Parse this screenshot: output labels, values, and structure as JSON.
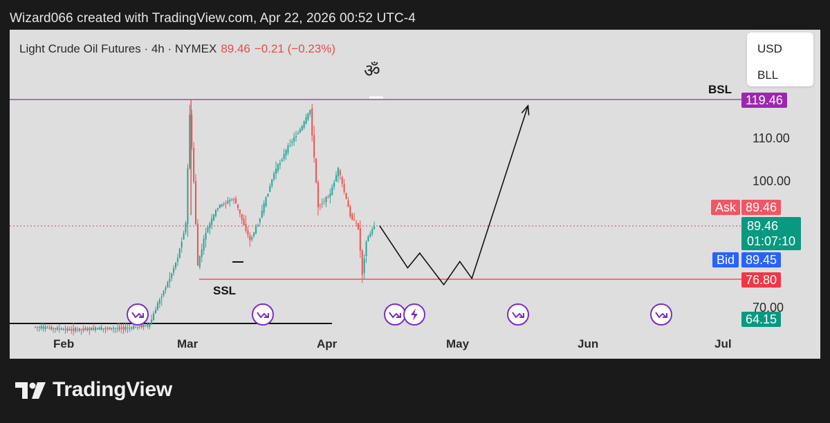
{
  "header": {
    "text": "Wizard066 created with TradingView.com, Apr 22, 2026 00:52 UTC-4"
  },
  "symbol": {
    "name": "Light Crude Oil Futures · 4h · NYMEX",
    "price": "89.46",
    "change": "−0.21 (−0.23%)",
    "glyph": "ॐ"
  },
  "currency_menu": {
    "options": [
      "USD",
      "BLL"
    ]
  },
  "price_axis": {
    "ticks": [
      "110.00",
      "100.00",
      "70.00"
    ]
  },
  "time_axis": {
    "ticks": [
      "Feb",
      "Mar",
      "Apr",
      "May",
      "Jun",
      "Jul"
    ]
  },
  "tags": {
    "bsl": {
      "label": "BSL",
      "value": "119.46",
      "color": "#9c27b0"
    },
    "ask": {
      "label": "Ask",
      "value": "89.46",
      "color": "#f25563"
    },
    "last": {
      "value": "89.46",
      "countdown": "01:07:10",
      "color": "#089981"
    },
    "bid": {
      "label": "Bid",
      "value": "89.45",
      "color": "#2962ff"
    },
    "ssl": {
      "label": "SSL",
      "value": "76.80",
      "color": "#f23645"
    },
    "low": {
      "value": "64.15",
      "color": "#089981"
    }
  },
  "colors": {
    "up": "#26a69a",
    "down": "#ef5350",
    "event_icon": "#7b2cbf"
  },
  "footer": {
    "brand": "TradingView"
  },
  "chart_data": {
    "type": "candlestick",
    "title": "Light Crude Oil Futures · 4h · NYMEX",
    "x_ticks": [
      "Feb",
      "Mar",
      "Apr",
      "May",
      "Jun",
      "Jul"
    ],
    "y_ticks": [
      70,
      100,
      110
    ],
    "y_range": [
      62,
      126
    ],
    "levels": [
      {
        "name": "BSL",
        "value": 119.46,
        "color": "#9c27b0"
      },
      {
        "name": "SSL",
        "value": 76.8,
        "color": "#f23645"
      },
      {
        "name": "Last",
        "value": 89.46,
        "color": "#f25563",
        "style": "dotted"
      }
    ],
    "price_path": [
      {
        "date": "2026-01-27",
        "price": 65.5
      },
      {
        "date": "2026-02-05",
        "price": 64.8
      },
      {
        "date": "2026-02-13",
        "price": 65.1
      },
      {
        "date": "2026-02-20",
        "price": 65.2
      },
      {
        "date": "2026-02-25",
        "price": 66.0
      },
      {
        "date": "2026-02-27",
        "price": 71.0
      },
      {
        "date": "2026-03-02",
        "price": 77.0
      },
      {
        "date": "2026-03-04",
        "price": 82.0
      },
      {
        "date": "2026-03-06",
        "price": 90.0
      },
      {
        "date": "2026-03-07",
        "price": 116.0
      },
      {
        "date": "2026-03-08",
        "price": 100.0
      },
      {
        "date": "2026-03-09",
        "price": 80.0
      },
      {
        "date": "2026-03-11",
        "price": 88.0
      },
      {
        "date": "2026-03-14",
        "price": 94.0
      },
      {
        "date": "2026-03-18",
        "price": 96.0
      },
      {
        "date": "2026-03-22",
        "price": 86.0
      },
      {
        "date": "2026-03-24",
        "price": 90.0
      },
      {
        "date": "2026-03-28",
        "price": 102.0
      },
      {
        "date": "2026-04-01",
        "price": 109.0
      },
      {
        "date": "2026-04-04",
        "price": 113.0
      },
      {
        "date": "2026-04-06",
        "price": 117.0
      },
      {
        "date": "2026-04-08",
        "price": 94.0
      },
      {
        "date": "2026-04-11",
        "price": 97.0
      },
      {
        "date": "2026-04-13",
        "price": 103.0
      },
      {
        "date": "2026-04-16",
        "price": 92.0
      },
      {
        "date": "2026-04-18",
        "price": 89.0
      },
      {
        "date": "2026-04-19",
        "price": 78.0
      },
      {
        "date": "2026-04-20",
        "price": 86.0
      },
      {
        "date": "2026-04-22",
        "price": 89.46
      }
    ],
    "projection": [
      {
        "date": "2026-04-23",
        "price": 89.5
      },
      {
        "date": "2026-04-30",
        "price": 79.5
      },
      {
        "date": "2026-05-03",
        "price": 83.0
      },
      {
        "date": "2026-05-09",
        "price": 75.5
      },
      {
        "date": "2026-05-13",
        "price": 81.0
      },
      {
        "date": "2026-05-16",
        "price": 77.0
      },
      {
        "date": "2026-05-30",
        "price": 118.0
      }
    ],
    "annotations": [
      "SSL",
      "BSL"
    ]
  }
}
